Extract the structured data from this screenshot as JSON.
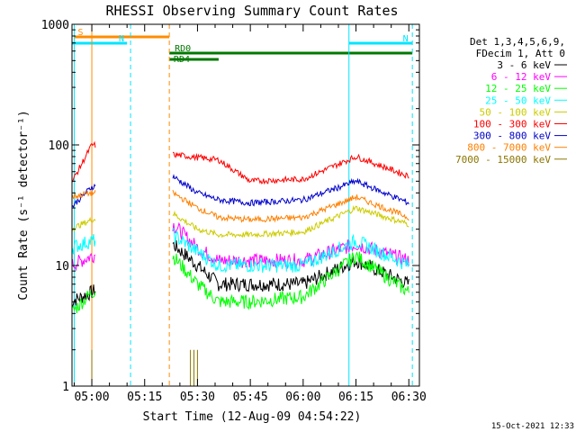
{
  "chart_data": {
    "type": "line",
    "title": "RHESSI Observing Summary Count Rates",
    "xlabel": "Start Time (12-Aug-09 04:54:22)",
    "ylabel": "Count Rate (s⁻¹ detector⁻¹)",
    "y_scale": "log",
    "ylim": [
      1,
      1000
    ],
    "x_ticks": [
      "05:00",
      "05:15",
      "05:30",
      "05:45",
      "06:00",
      "06:15",
      "06:30"
    ],
    "y_ticks": [
      "1",
      "10",
      "100",
      "1000"
    ],
    "legend_header": [
      "Det 1,3,4,5,6,9,",
      "FDecim 1, Att 0"
    ],
    "legend_placement": "right",
    "timestamp": "15-Oct-2021 12:33",
    "flags": [
      {
        "label": "S",
        "color": "#ff8c00",
        "start": "04:55",
        "end": "05:22"
      },
      {
        "label": "N",
        "color": "#00e5ff",
        "start": "04:54",
        "end": "05:10"
      },
      {
        "label": "N",
        "color": "#00e5ff",
        "start": "06:13",
        "end": "06:31"
      },
      {
        "label": "RD0",
        "color": "#007800",
        "start": "05:22",
        "end": "06:31"
      },
      {
        "label": "RD4",
        "color": "#007800",
        "start": "05:22",
        "end": "05:36"
      }
    ],
    "vertical_markers": [
      {
        "time": "04:55",
        "color": "#00e5ff",
        "style": "solid"
      },
      {
        "time": "05:00",
        "color": "#ff8c00",
        "style": "solid"
      },
      {
        "time": "05:11",
        "color": "#00e5ff",
        "style": "dashed"
      },
      {
        "time": "05:22",
        "color": "#ff8c00",
        "style": "dashed"
      },
      {
        "time": "06:13",
        "color": "#00e5ff",
        "style": "solid"
      },
      {
        "time": "06:31",
        "color": "#00e5ff",
        "style": "dashed"
      }
    ],
    "series": [
      {
        "name": "3 - 6 keV",
        "color": "#000000",
        "x": [
          "04:54",
          "05:00",
          "05:23",
          "05:30",
          "05:36",
          "05:45",
          "06:00",
          "06:15",
          "06:30"
        ],
        "values": [
          5,
          6,
          15,
          10,
          7,
          7,
          7,
          11,
          7
        ]
      },
      {
        "name": "6 - 12 keV",
        "color": "#ff00ff",
        "x": [
          "04:54",
          "05:00",
          "05:23",
          "05:30",
          "05:36",
          "05:45",
          "06:00",
          "06:15",
          "06:30"
        ],
        "values": [
          10,
          12,
          22,
          14,
          11,
          11,
          11,
          15,
          11
        ]
      },
      {
        "name": "12 - 25 keV",
        "color": "#00ff00",
        "x": [
          "04:54",
          "05:00",
          "05:23",
          "05:30",
          "05:36",
          "05:45",
          "06:00",
          "06:15",
          "06:30"
        ],
        "values": [
          4,
          6,
          12,
          7,
          5,
          5,
          5.5,
          12,
          6
        ]
      },
      {
        "name": "25 - 50 keV",
        "color": "#00ffff",
        "x": [
          "04:54",
          "05:00",
          "05:23",
          "05:30",
          "05:36",
          "05:45",
          "06:00",
          "06:15",
          "06:30"
        ],
        "values": [
          14,
          16,
          18,
          13,
          10,
          10,
          10,
          16,
          10
        ]
      },
      {
        "name": "50 - 100 keV",
        "color": "#cccc00",
        "x": [
          "04:54",
          "05:00",
          "05:23",
          "05:30",
          "05:36",
          "05:45",
          "06:00",
          "06:15",
          "06:30"
        ],
        "values": [
          20,
          24,
          27,
          20,
          18,
          18,
          19,
          30,
          22
        ]
      },
      {
        "name": "100 - 300 keV",
        "color": "#ff0000",
        "x": [
          "04:54",
          "05:00",
          "05:36",
          "05:45",
          "06:00",
          "06:15",
          "06:30"
        ],
        "values": [
          47,
          100,
          75,
          50,
          52,
          80,
          55
        ]
      },
      {
        "name": "300 - 800 keV",
        "color": "#0000cc",
        "x": [
          "04:54",
          "05:00",
          "05:23",
          "05:30",
          "05:36",
          "05:45",
          "06:00",
          "06:15",
          "06:30"
        ],
        "values": [
          30,
          45,
          55,
          40,
          35,
          33,
          35,
          50,
          33
        ]
      },
      {
        "name": "800 - 7000 keV",
        "color": "#ff8000",
        "x": [
          "04:54",
          "05:00",
          "05:23",
          "05:30",
          "05:36",
          "05:45",
          "06:00",
          "06:15",
          "06:30"
        ],
        "values": [
          37,
          40,
          40,
          30,
          25,
          24,
          25,
          37,
          25
        ]
      },
      {
        "name": "7000 - 15000 keV",
        "color": "#8b7500",
        "x": [
          "05:00",
          "05:29"
        ],
        "values": [
          1.6,
          1.6
        ]
      }
    ]
  }
}
